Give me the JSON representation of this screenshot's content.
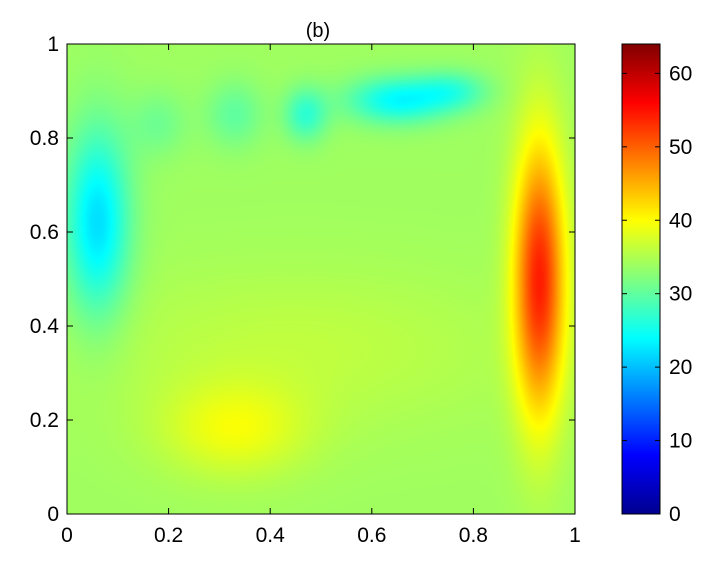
{
  "chart_data": {
    "type": "heatmap",
    "title": "(b)",
    "xlabel": "",
    "ylabel": "",
    "xlim": [
      0,
      1
    ],
    "ylim": [
      0,
      1
    ],
    "x_ticks": [
      "0",
      "0.2",
      "0.4",
      "0.6",
      "0.8",
      "1"
    ],
    "y_ticks": [
      "0",
      "0.2",
      "0.4",
      "0.6",
      "0.8",
      "1"
    ],
    "colormap": "jet",
    "colorbar": {
      "range": [
        0,
        64
      ],
      "ticks": [
        "0",
        "10",
        "20",
        "30",
        "40",
        "50",
        "60"
      ]
    },
    "grid": false,
    "field": {
      "baseline": 34,
      "features": [
        {
          "x": 0.06,
          "y": 0.62,
          "sx": 0.045,
          "sy": 0.14,
          "amp": -12
        },
        {
          "x": 0.65,
          "y": 0.88,
          "sx": 0.07,
          "sy": 0.035,
          "amp": -10
        },
        {
          "x": 0.76,
          "y": 0.9,
          "sx": 0.05,
          "sy": 0.03,
          "amp": -6
        },
        {
          "x": 0.47,
          "y": 0.85,
          "sx": 0.03,
          "sy": 0.04,
          "amp": -7
        },
        {
          "x": 0.33,
          "y": 0.85,
          "sx": 0.04,
          "sy": 0.05,
          "amp": -4
        },
        {
          "x": 0.18,
          "y": 0.83,
          "sx": 0.04,
          "sy": 0.05,
          "amp": -3
        },
        {
          "x": 0.93,
          "y": 0.5,
          "sx": 0.035,
          "sy": 0.2,
          "amp": 20
        },
        {
          "x": 0.33,
          "y": 0.18,
          "sx": 0.1,
          "sy": 0.07,
          "amp": 5
        },
        {
          "x": 0.45,
          "y": 0.35,
          "sx": 0.3,
          "sy": 0.12,
          "amp": 2
        }
      ]
    }
  }
}
